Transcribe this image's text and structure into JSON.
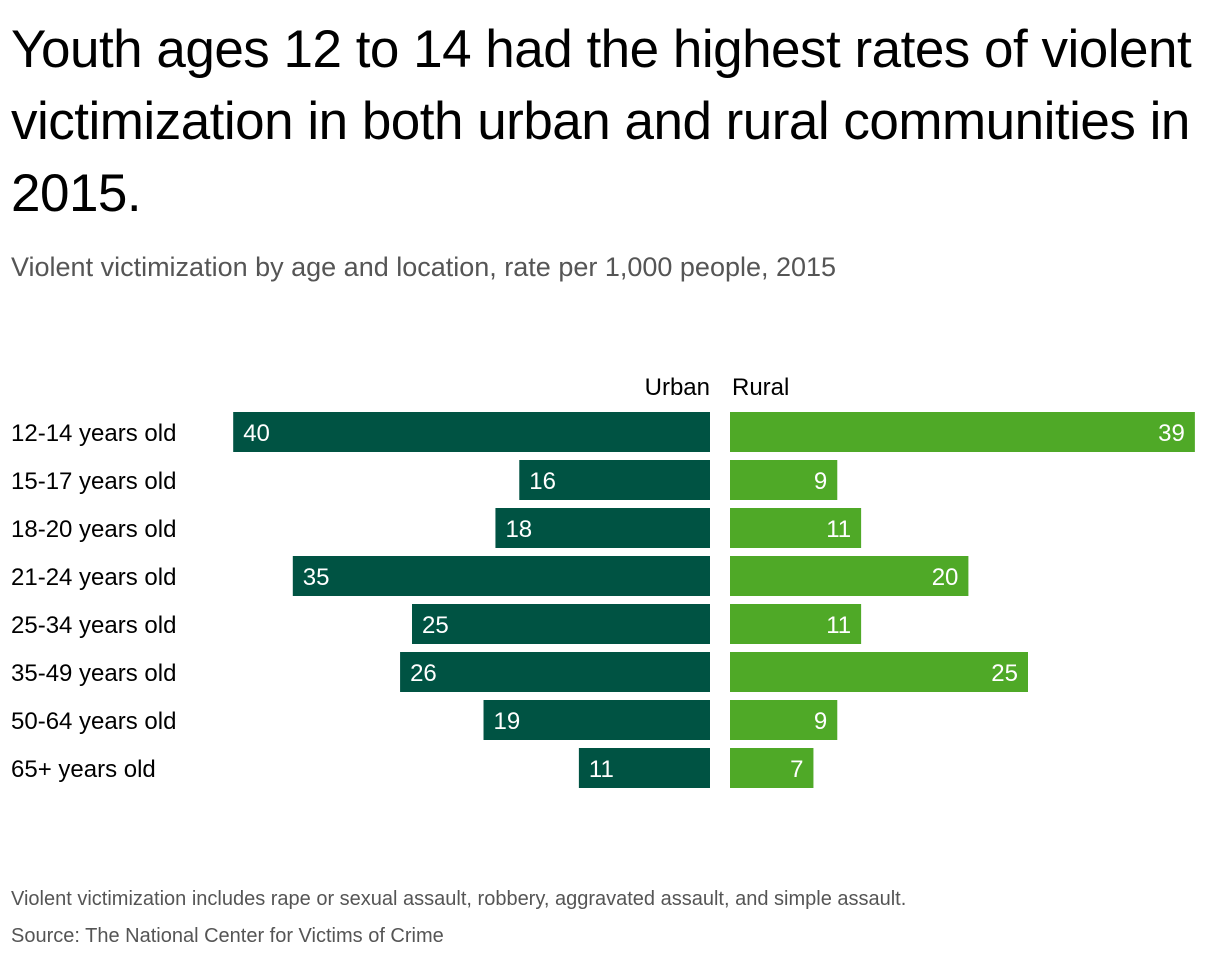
{
  "title": "Youth ages 12 to 14 had the highest rates of violent victimization in both urban and rural communities in 2015.",
  "subtitle": "Violent victimization by age and location, rate per 1,000 people, 2015",
  "note": "Violent victimization includes rape or sexual assault, robbery, aggravated assault, and simple assault.",
  "source": "Source: The National Center for Victims of Crime",
  "chart_data": {
    "type": "bar",
    "orientation": "horizontal-diverging",
    "categories": [
      "12-14 years old",
      "15-17 years old",
      "18-20 years old",
      "21-24 years old",
      "25-34 years old",
      "35-49 years old",
      "50-64 years old",
      "65+ years old"
    ],
    "series": [
      {
        "name": "Urban",
        "color": "#005343",
        "values": [
          40,
          16,
          18,
          35,
          25,
          26,
          19,
          11
        ]
      },
      {
        "name": "Rural",
        "color": "#4fa927",
        "values": [
          39,
          9,
          11,
          20,
          11,
          25,
          9,
          7
        ]
      }
    ],
    "data_labels": true,
    "grid": false
  }
}
